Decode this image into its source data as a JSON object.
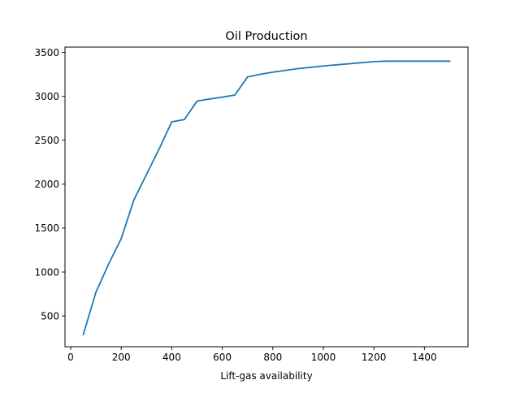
{
  "chart_data": {
    "type": "line",
    "title": "Oil Production",
    "xlabel": "Lift-gas availability",
    "ylabel": "",
    "xlim": [
      -22.5,
      1572.5
    ],
    "ylim": [
      150,
      3560
    ],
    "xticks": [
      0,
      200,
      400,
      600,
      800,
      1000,
      1200,
      1400
    ],
    "yticks": [
      500,
      1000,
      1500,
      2000,
      2500,
      3000,
      3500
    ],
    "grid": false,
    "legend": "none",
    "series": [
      {
        "color": "#1f77b4",
        "x": [
          50,
          100,
          150,
          200,
          250,
          300,
          350,
          400,
          450,
          500,
          550,
          600,
          650,
          700,
          750,
          800,
          900,
          1000,
          1100,
          1200,
          1250,
          1300,
          1400,
          1500
        ],
        "y": [
          290,
          770,
          1090,
          1380,
          1820,
          2110,
          2400,
          2710,
          2735,
          2945,
          2970,
          2990,
          3015,
          3220,
          3250,
          3275,
          3315,
          3345,
          3370,
          3395,
          3400,
          3400,
          3400,
          3400
        ]
      }
    ]
  }
}
